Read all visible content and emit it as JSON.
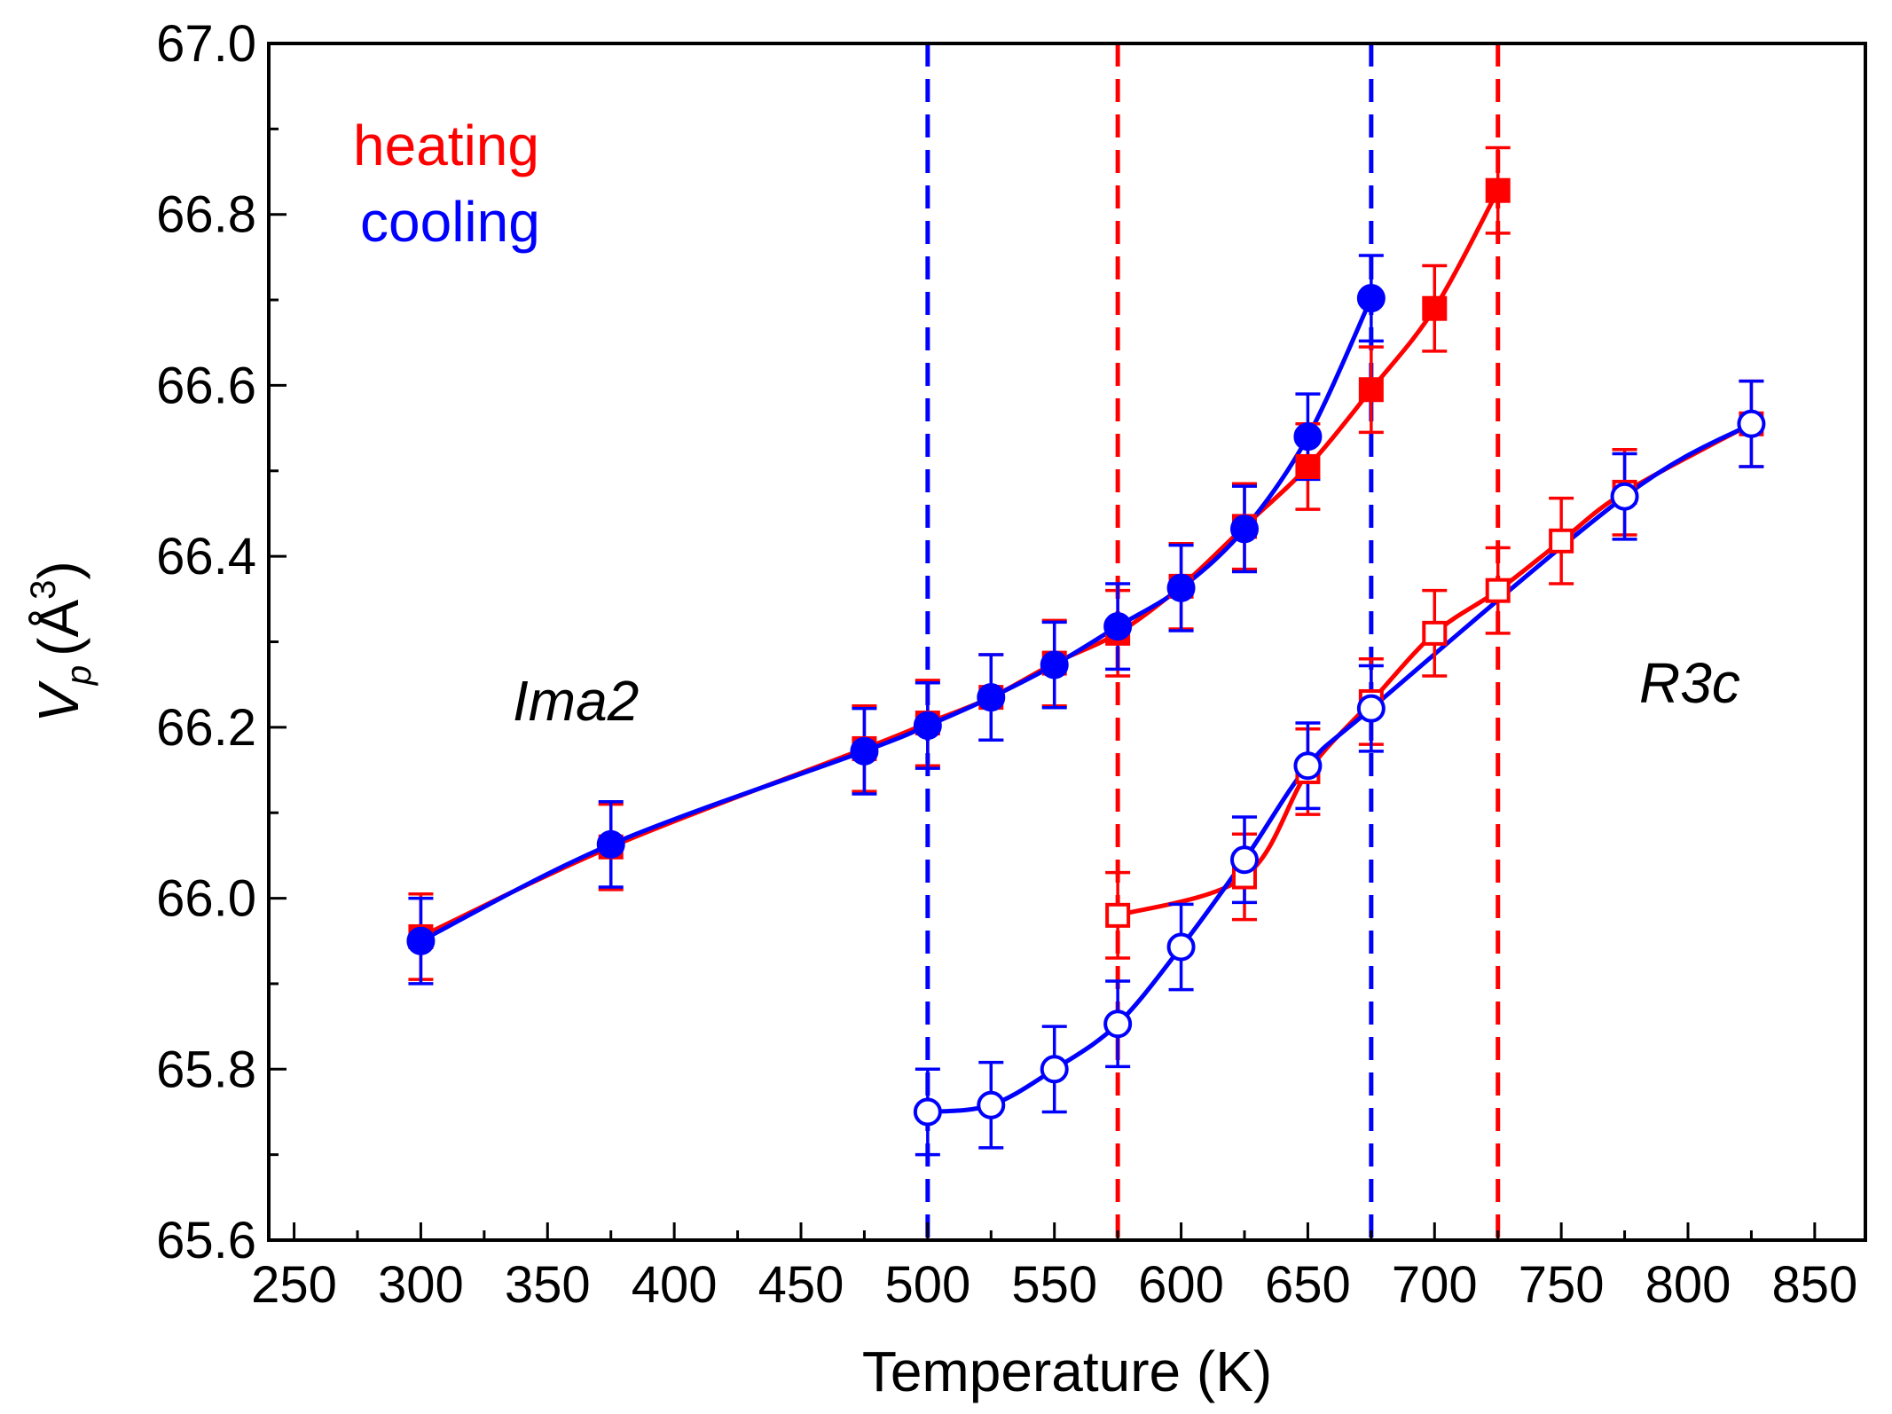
{
  "chart_data": {
    "type": "line",
    "xlabel": "Temperature (K)",
    "ylabel_main": "V",
    "ylabel_sub": "p",
    "ylabel_unit": "(Å",
    "ylabel_sup": "3",
    "ylabel_close": ")",
    "xlim": [
      240,
      870
    ],
    "ylim": [
      65.6,
      67.0
    ],
    "x_ticks": [
      250,
      300,
      350,
      400,
      450,
      500,
      550,
      600,
      650,
      700,
      750,
      800,
      850
    ],
    "y_ticks": [
      "65.6",
      "65.8",
      "66.0",
      "66.2",
      "66.4",
      "66.6",
      "66.8",
      "67.0"
    ],
    "legend": {
      "heating": "heating",
      "cooling": "cooling",
      "placement": "top-left"
    },
    "annotations": {
      "left_phase": "Ima2",
      "right_phase": "R3c"
    },
    "colors": {
      "heating": "#ff0000",
      "cooling": "#0000ff"
    },
    "error_bar": 0.05,
    "vlines": [
      {
        "x": 500,
        "color": "#0000ff"
      },
      {
        "x": 575,
        "color": "#ff0000"
      },
      {
        "x": 675,
        "color": "#0000ff"
      },
      {
        "x": 725,
        "color": "#ff0000"
      }
    ],
    "series": [
      {
        "name": "heating",
        "phase": "Ima2",
        "marker": "square",
        "filled": true,
        "color": "#ff0000",
        "x": [
          300,
          375,
          475,
          500,
          525,
          550,
          575,
          600,
          625,
          650,
          675,
          700,
          725
        ],
        "y": [
          65.955,
          66.06,
          66.175,
          66.205,
          66.235,
          66.275,
          66.31,
          66.365,
          66.435,
          66.505,
          66.595,
          66.69,
          66.828
        ]
      },
      {
        "name": "cooling",
        "phase": "Ima2",
        "marker": "circle",
        "filled": true,
        "color": "#0000ff",
        "x": [
          300,
          375,
          475,
          500,
          525,
          550,
          575,
          600,
          625,
          650,
          675
        ],
        "y": [
          65.95,
          66.063,
          66.172,
          66.202,
          66.235,
          66.273,
          66.318,
          66.363,
          66.432,
          66.54,
          66.702
        ]
      },
      {
        "name": "heating",
        "phase": "R3c",
        "marker": "square",
        "filled": false,
        "color": "#ff0000",
        "x": [
          575,
          625,
          650,
          675,
          700,
          725,
          750,
          775,
          825
        ],
        "y": [
          65.98,
          66.025,
          66.148,
          66.23,
          66.31,
          66.36,
          66.418,
          66.475,
          66.555
        ]
      },
      {
        "name": "cooling",
        "phase": "R3c",
        "marker": "circle",
        "filled": false,
        "color": "#0000ff",
        "x": [
          500,
          525,
          550,
          575,
          600,
          625,
          650,
          675,
          775,
          825
        ],
        "y": [
          65.75,
          65.758,
          65.8,
          65.853,
          65.943,
          66.045,
          66.155,
          66.222,
          66.47,
          66.555
        ]
      }
    ]
  }
}
